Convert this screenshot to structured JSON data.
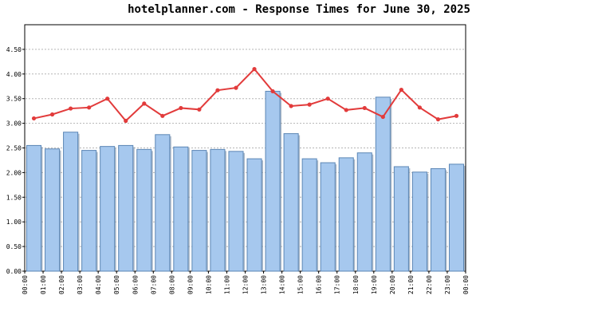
{
  "chart_data": {
    "type": "bar",
    "title": "hotelplanner.com - Response Times for June 30, 2025",
    "xlabel": "",
    "ylabel": "",
    "ylim": [
      0,
      5
    ],
    "y_ticks": [
      "0.00",
      "0.50",
      "1.00",
      "1.50",
      "2.00",
      "2.50",
      "3.00",
      "3.50",
      "4.00",
      "4.50"
    ],
    "x_ticks": [
      "00:00",
      "01:00",
      "02:00",
      "03:00",
      "04:00",
      "05:00",
      "06:00",
      "07:00",
      "08:00",
      "09:00",
      "10:00",
      "11:00",
      "12:00",
      "13:00",
      "14:00",
      "15:00",
      "16:00",
      "17:00",
      "18:00",
      "19:00",
      "20:00",
      "21:00",
      "22:00",
      "23:00",
      "00:00"
    ],
    "grid": true,
    "series": [
      {
        "kind": "bar",
        "color": "#a6c8ee",
        "values": [
          2.55,
          2.48,
          2.82,
          2.45,
          2.53,
          2.55,
          2.47,
          2.77,
          2.52,
          2.45,
          2.47,
          2.43,
          2.28,
          3.65,
          2.79,
          2.28,
          2.2,
          2.3,
          2.4,
          3.53,
          2.12,
          2.01,
          2.08,
          2.17
        ]
      },
      {
        "kind": "line",
        "color": "#e23b3b",
        "values": [
          3.1,
          3.18,
          3.3,
          3.32,
          3.5,
          3.05,
          3.4,
          3.15,
          3.31,
          3.28,
          3.67,
          3.72,
          4.1,
          3.65,
          3.35,
          3.38,
          3.5,
          3.27,
          3.31,
          3.13,
          3.68,
          3.32,
          3.08,
          3.15
        ]
      }
    ]
  }
}
